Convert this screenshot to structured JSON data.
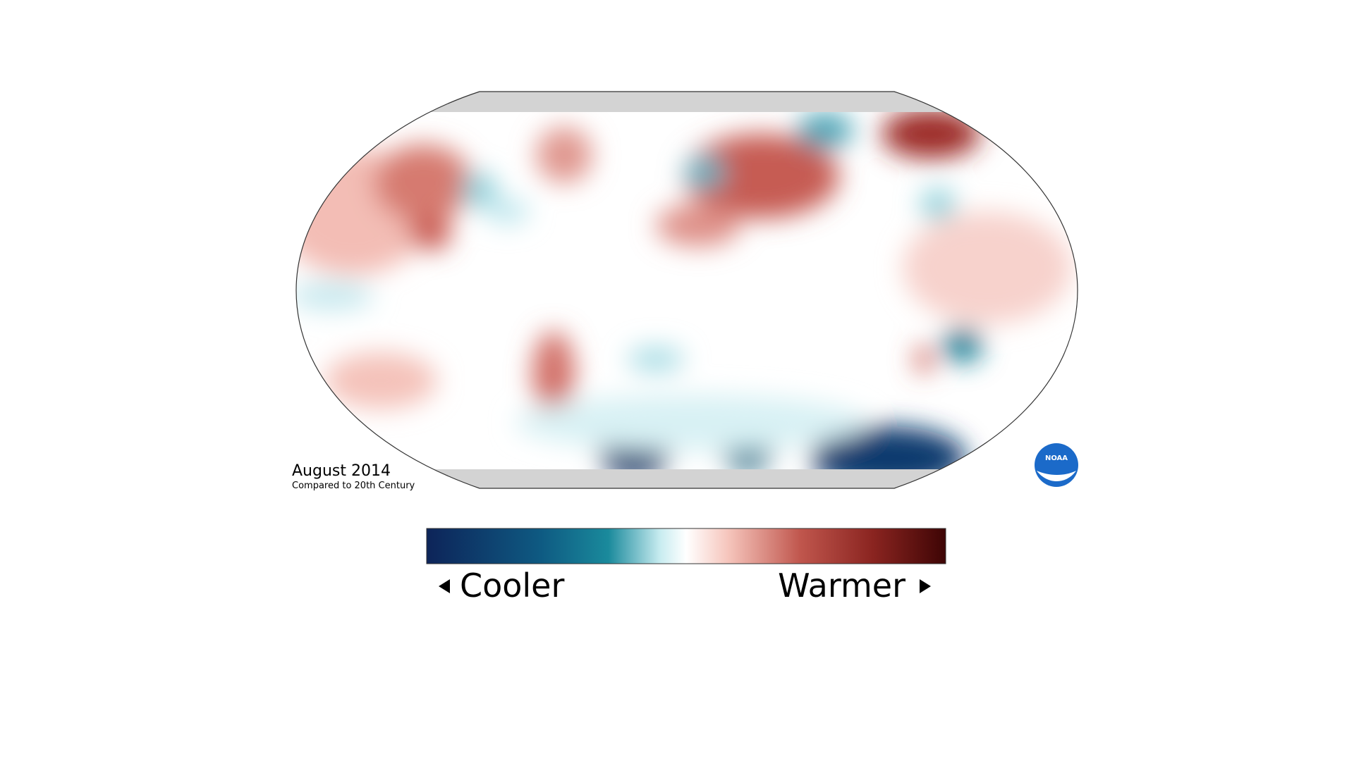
{
  "map": {
    "title": "August 2014",
    "subtitle": "Compared to 20th Century",
    "logo": "NOAA"
  },
  "legend": {
    "low_label": "Cooler",
    "high_label": "Warmer"
  }
}
